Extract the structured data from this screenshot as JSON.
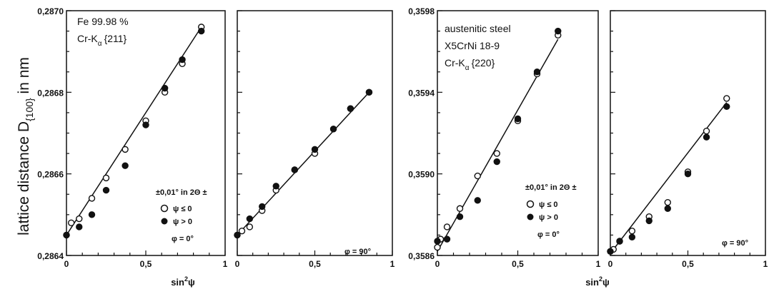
{
  "figure": {
    "ylabel_left": "lattice distance D",
    "ylabel_sub": "{100}",
    "ylabel_unit": " in nm",
    "xlabel_main": "sin",
    "xlabel_sup": "2",
    "xlabel_end": "ψ"
  },
  "chart_data": [
    {
      "type": "scatter",
      "x_ticks": [
        "0",
        "0,5",
        "1"
      ],
      "y_ticks": [
        "0,2864",
        "0,2866",
        "0,2868",
        "0,2870"
      ],
      "xlim": [
        0,
        1
      ],
      "ylim": [
        0.2864,
        0.287
      ],
      "annotations": {
        "material": "Fe 99.98 %",
        "radiation_prefix": "Cr-K",
        "radiation_sub": "α",
        "radiation_hkl": "{211}",
        "error_note": "±0,01° in 2Θ ±",
        "legend_open": "ψ ≤ 0",
        "legend_filled": "ψ > 0",
        "phi": "φ = 0°"
      },
      "series": [
        {
          "marker": "open",
          "x": [
            0.0,
            0.03,
            0.08,
            0.16,
            0.25,
            0.37,
            0.5,
            0.62,
            0.73,
            0.85
          ],
          "y": [
            0.28645,
            0.28648,
            0.28649,
            0.28654,
            0.28659,
            0.28666,
            0.28673,
            0.2868,
            0.28687,
            0.28696
          ]
        },
        {
          "marker": "filled",
          "x": [
            0.0,
            0.08,
            0.16,
            0.25,
            0.37,
            0.5,
            0.62,
            0.73,
            0.85
          ],
          "y": [
            0.28645,
            0.28647,
            0.2865,
            0.28656,
            0.28662,
            0.28672,
            0.28681,
            0.28688,
            0.28695
          ]
        }
      ],
      "fit_line": {
        "x": [
          0.0,
          0.85
        ],
        "y": [
          0.28645,
          0.28696
        ]
      }
    },
    {
      "type": "scatter",
      "x_ticks": [
        "0",
        "0,5",
        "1"
      ],
      "ylim": [
        0.2864,
        0.287
      ],
      "xlim": [
        0,
        1
      ],
      "annotations": {
        "phi": "φ = 90°"
      },
      "series": [
        {
          "marker": "open",
          "x": [
            0.0,
            0.03,
            0.08,
            0.16,
            0.25,
            0.37,
            0.5,
            0.62,
            0.73,
            0.85
          ],
          "y": [
            0.28645,
            0.28646,
            0.28647,
            0.28651,
            0.28656,
            0.28661,
            0.28665,
            0.28671,
            0.28676,
            0.2868
          ]
        },
        {
          "marker": "filled",
          "x": [
            0.0,
            0.08,
            0.16,
            0.25,
            0.37,
            0.5,
            0.62,
            0.73,
            0.85
          ],
          "y": [
            0.28645,
            0.28649,
            0.28652,
            0.28657,
            0.28661,
            0.28666,
            0.28671,
            0.28676,
            0.2868
          ]
        }
      ],
      "fit_line": {
        "x": [
          0.0,
          0.85
        ],
        "y": [
          0.28645,
          0.2868
        ]
      }
    },
    {
      "type": "scatter",
      "x_ticks": [
        "0",
        "0,5",
        "1"
      ],
      "y_ticks": [
        "0,3586",
        "0,3590",
        "0,3594",
        "0,3598"
      ],
      "xlim": [
        0,
        1
      ],
      "ylim": [
        0.3586,
        0.3598
      ],
      "annotations": {
        "material": "austenitic steel",
        "grade": "X5CrNi 18-9",
        "radiation_prefix": "Cr-K",
        "radiation_sub": "α",
        "radiation_hkl": "{220}",
        "error_note": "±0,01° in 2Θ ±",
        "legend_open": "ψ ≤ 0",
        "legend_filled": "ψ > 0",
        "phi": "φ = 0°"
      },
      "series": [
        {
          "marker": "open",
          "x": [
            0.0,
            0.02,
            0.06,
            0.14,
            0.25,
            0.37,
            0.5,
            0.62,
            0.75
          ],
          "y": [
            0.35864,
            0.35868,
            0.35874,
            0.35883,
            0.35899,
            0.3591,
            0.35926,
            0.35949,
            0.35968
          ]
        },
        {
          "marker": "filled",
          "x": [
            0.0,
            0.06,
            0.14,
            0.25,
            0.37,
            0.5,
            0.62,
            0.75
          ],
          "y": [
            0.35867,
            0.35868,
            0.35879,
            0.35887,
            0.35906,
            0.35927,
            0.3595,
            0.3597
          ]
        }
      ],
      "fit_line": {
        "x": [
          0.0,
          0.75
        ],
        "y": [
          0.35862,
          0.35966
        ]
      }
    },
    {
      "type": "scatter",
      "x_ticks": [
        "0",
        "0,5",
        "1"
      ],
      "xlim": [
        0,
        1
      ],
      "ylim": [
        0.3586,
        0.3598
      ],
      "annotations": {
        "phi": "φ = 90°"
      },
      "series": [
        {
          "marker": "open",
          "x": [
            0.0,
            0.02,
            0.06,
            0.14,
            0.25,
            0.37,
            0.5,
            0.62,
            0.75
          ],
          "y": [
            0.35862,
            0.35863,
            0.35867,
            0.35872,
            0.35879,
            0.35886,
            0.35901,
            0.35921,
            0.35937
          ]
        },
        {
          "marker": "filled",
          "x": [
            0.0,
            0.06,
            0.14,
            0.25,
            0.37,
            0.5,
            0.62,
            0.75
          ],
          "y": [
            0.35862,
            0.35867,
            0.35869,
            0.35877,
            0.35883,
            0.359,
            0.35918,
            0.35933
          ]
        }
      ],
      "fit_line": {
        "x": [
          0.0,
          0.75
        ],
        "y": [
          0.35861,
          0.35935
        ]
      }
    }
  ]
}
